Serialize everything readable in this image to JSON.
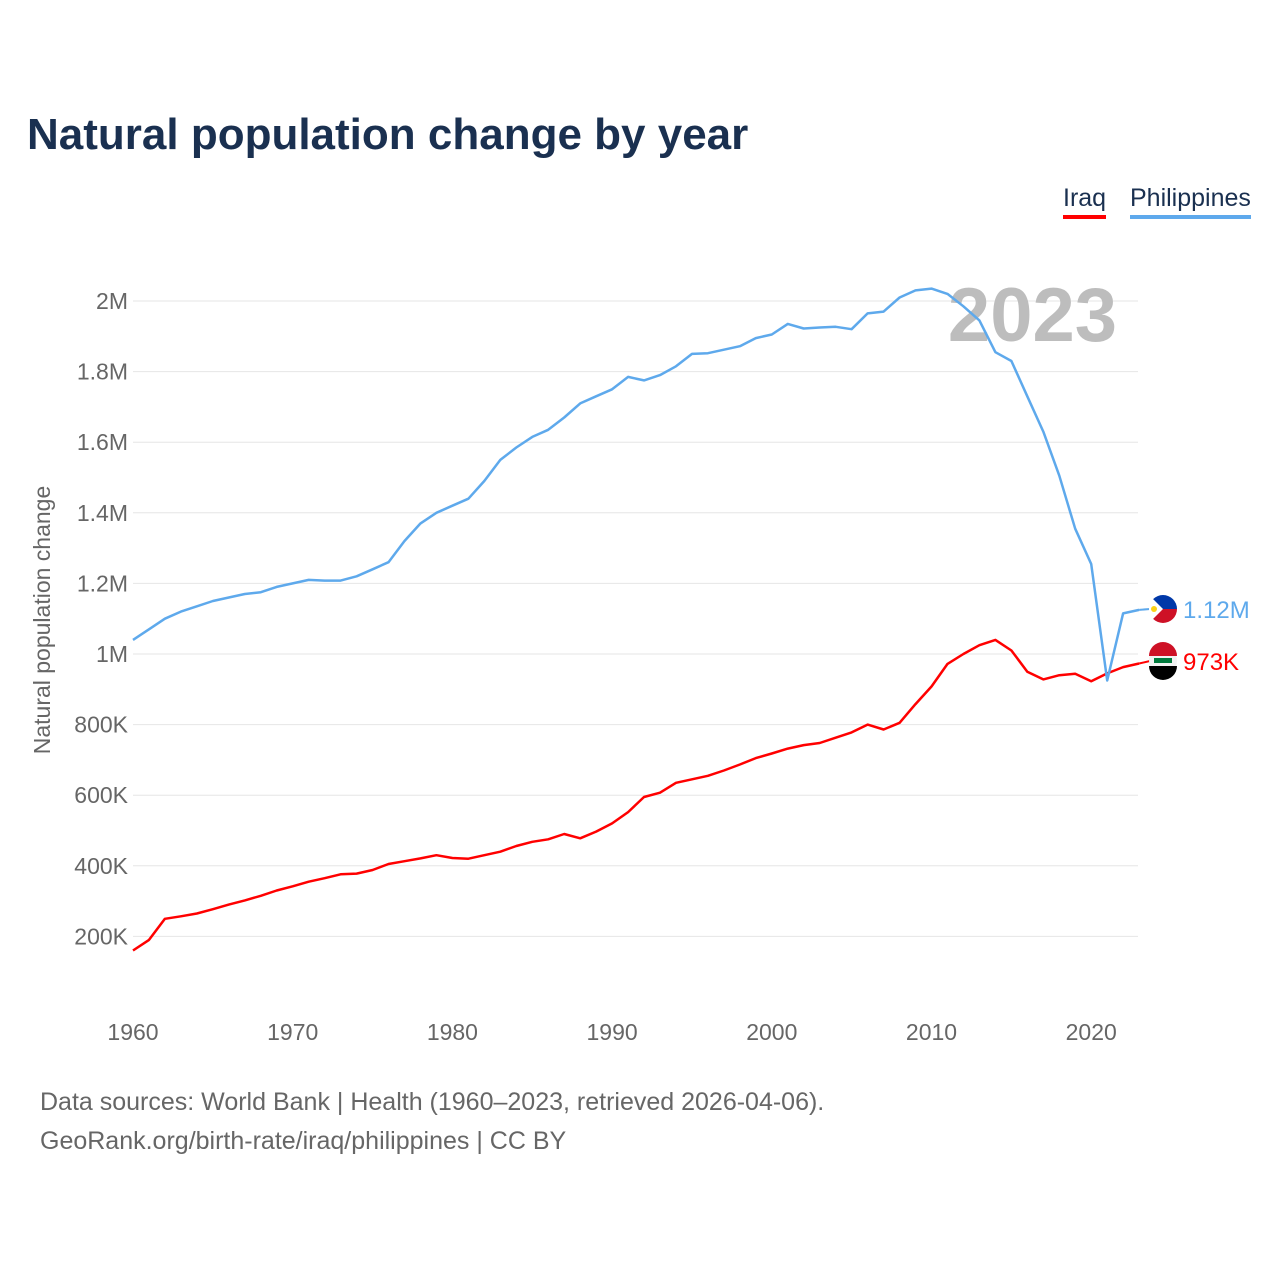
{
  "chart_data": {
    "type": "line",
    "title": "Natural population change by year",
    "xlabel": "",
    "ylabel": "Natural population change",
    "xlim": [
      1960,
      2023
    ],
    "ylim": [
      0,
      2100000
    ],
    "grid": true,
    "legend_position": "top-right",
    "watermark_year": "2023",
    "x_ticks": [
      1960,
      1970,
      1980,
      1990,
      2000,
      2010,
      2020
    ],
    "x_tick_labels": [
      "1960",
      "1970",
      "1980",
      "1990",
      "2000",
      "2010",
      "2020"
    ],
    "y_ticks": [
      200000,
      400000,
      600000,
      800000,
      1000000,
      1200000,
      1400000,
      1600000,
      1800000,
      2000000
    ],
    "y_tick_labels": [
      "200K",
      "400K",
      "600K",
      "800K",
      "1M",
      "1.2M",
      "1.4M",
      "1.6M",
      "1.8M",
      "2M"
    ],
    "x": [
      1960,
      1961,
      1962,
      1963,
      1964,
      1965,
      1966,
      1967,
      1968,
      1969,
      1970,
      1971,
      1972,
      1973,
      1974,
      1975,
      1976,
      1977,
      1978,
      1979,
      1980,
      1981,
      1982,
      1983,
      1984,
      1985,
      1986,
      1987,
      1988,
      1989,
      1990,
      1991,
      1992,
      1993,
      1994,
      1995,
      1996,
      1997,
      1998,
      1999,
      2000,
      2001,
      2002,
      2003,
      2004,
      2005,
      2006,
      2007,
      2008,
      2009,
      2010,
      2011,
      2012,
      2013,
      2014,
      2015,
      2016,
      2017,
      2018,
      2019,
      2020,
      2021,
      2022,
      2023
    ],
    "series": [
      {
        "name": "Iraq",
        "color": "#ff0000",
        "end_label": "973K",
        "flag": "iraq-flag",
        "values": [
          160000,
          190000,
          250000,
          257000,
          265000,
          277000,
          290000,
          302000,
          315000,
          330000,
          342000,
          355000,
          365000,
          376000,
          378000,
          388000,
          405000,
          413000,
          421000,
          430000,
          422000,
          420000,
          430000,
          440000,
          456000,
          468000,
          475000,
          490000,
          478000,
          497000,
          520000,
          552000,
          595000,
          607000,
          635000,
          645000,
          655000,
          670000,
          687000,
          705000,
          718000,
          732000,
          742000,
          748000,
          763000,
          778000,
          800000,
          786000,
          805000,
          858000,
          908000,
          972000,
          1000000,
          1025000,
          1040000,
          1010000,
          950000,
          928000,
          940000,
          944000,
          923000,
          945000,
          963000,
          973000
        ]
      },
      {
        "name": "Philippines",
        "color": "#5ea9ec",
        "end_label": "1.12M",
        "flag": "philippines-flag",
        "values": [
          1040000,
          1070000,
          1100000,
          1120000,
          1135000,
          1150000,
          1160000,
          1170000,
          1175000,
          1190000,
          1200000,
          1210000,
          1208000,
          1208000,
          1220000,
          1240000,
          1260000,
          1320000,
          1370000,
          1400000,
          1420000,
          1440000,
          1490000,
          1550000,
          1585000,
          1615000,
          1635000,
          1670000,
          1710000,
          1730000,
          1750000,
          1785000,
          1775000,
          1790000,
          1815000,
          1850000,
          1852000,
          1862000,
          1872000,
          1895000,
          1905000,
          1935000,
          1922000,
          1925000,
          1927000,
          1920000,
          1965000,
          1970000,
          2010000,
          2030000,
          2035000,
          2020000,
          1985000,
          1945000,
          1855000,
          1830000,
          1730000,
          1630000,
          1505000,
          1355000,
          1255000,
          925000,
          1115000,
          1125000
        ]
      }
    ]
  },
  "footer": {
    "line1": "Data sources: World Bank | Health (1960–2023, retrieved 2026-04-06).",
    "line2": "GeoRank.org/birth-rate/iraq/philippines | CC BY"
  }
}
